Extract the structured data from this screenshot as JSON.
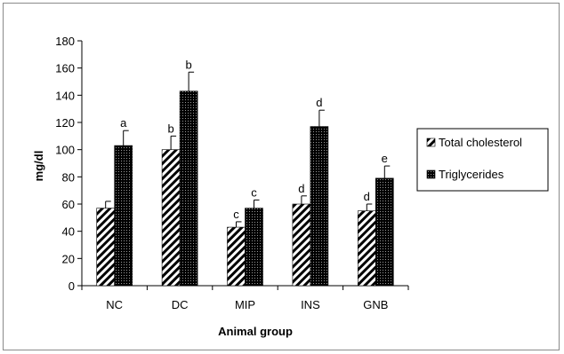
{
  "chart_data": {
    "type": "bar",
    "title": "",
    "xlabel": "Animal group",
    "ylabel": "mg/dl",
    "ylim": [
      0,
      180
    ],
    "yticks": [
      0,
      20,
      40,
      60,
      80,
      100,
      120,
      140,
      160,
      180
    ],
    "categories": [
      "NC",
      "DC",
      "MIP",
      "INS",
      "GNB"
    ],
    "series": [
      {
        "name": "Total cholesterol",
        "values": [
          57,
          100,
          43,
          60,
          55
        ],
        "errors": [
          5,
          10,
          4,
          6,
          5
        ],
        "labels": [
          "",
          "b",
          "c",
          "d",
          "d"
        ],
        "pattern": "diagonal-hatch"
      },
      {
        "name": "Triglycerides",
        "values": [
          103,
          143,
          57,
          117,
          79
        ],
        "errors": [
          11,
          14,
          6,
          12,
          9
        ],
        "labels": [
          "a",
          "b",
          "c",
          "d",
          "e"
        ],
        "pattern": "dotted-black"
      }
    ],
    "legend_position": "right",
    "grid": false
  }
}
